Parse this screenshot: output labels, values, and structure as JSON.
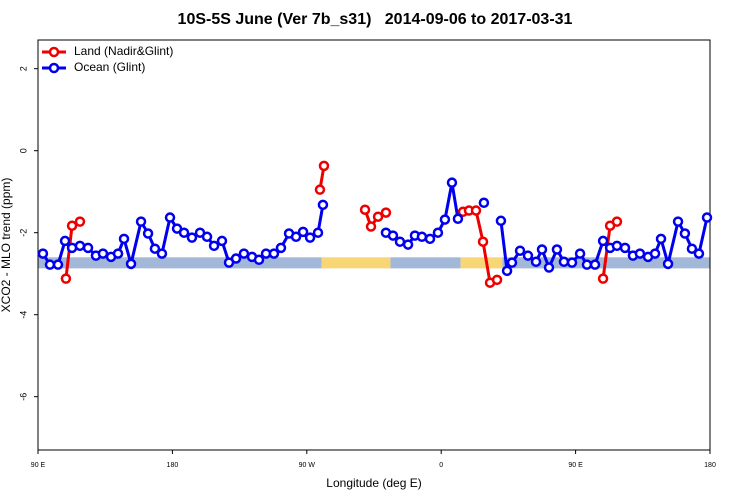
{
  "chart_data": {
    "type": "line",
    "title": "10S-5S June (Ver 7b_s31)   2014-09-06 to 2017-03-31",
    "x_label": "Longitude (deg E)",
    "y_label": "XCO2 - MLO trend (ppm)",
    "xlim": [
      90,
      540
    ],
    "ylim": [
      -7.3,
      2.7
    ],
    "xticks": [
      {
        "value": 90,
        "label": "90 E"
      },
      180,
      {
        "value": 270,
        "label": "90 W"
      },
      {
        "value": 360,
        "label": "0"
      },
      {
        "value": 450,
        "label": "90 E"
      },
      {
        "value": 540,
        "label": "180"
      }
    ],
    "yticks": [
      2,
      0,
      -2,
      -4,
      -6
    ],
    "legend": "top-left",
    "surface_band": {
      "ylim": [
        -2.6,
        -2.87
      ],
      "segments": [
        {
          "from": 90,
          "to": 280,
          "color": "#a3b8d8"
        },
        {
          "from": 280,
          "to": 326,
          "color": "#f8d676"
        },
        {
          "from": 326,
          "to": 373,
          "color": "#a3b8d8"
        },
        {
          "from": 373,
          "to": 401,
          "color": "#f8d676"
        },
        {
          "from": 401,
          "to": 540,
          "color": "#a3b8d8"
        }
      ]
    },
    "series": [
      {
        "name": "Land (Nadir&Glint)",
        "color": "#ee0000",
        "x": [
          108.7,
          112.8,
          118.1,
          200,
          278.8,
          281.5,
          300,
          309.0,
          313.0,
          317.7,
          323.0,
          340,
          374.6,
          378.6,
          383.3,
          388.0,
          392.7,
          397.4,
          430,
          468.4,
          473.1,
          477.7
        ],
        "values": [
          -3.12,
          -1.83,
          -1.73,
          null,
          -0.95,
          -0.37,
          null,
          -1.44,
          -1.85,
          -1.61,
          -1.51,
          null,
          -1.49,
          -1.46,
          -1.46,
          -2.22,
          -3.22,
          -3.15,
          null,
          -3.12,
          -1.83,
          -1.73
        ]
      },
      {
        "name": "Ocean (Glint)",
        "color": "#0000ee",
        "x": [
          93.3,
          98.0,
          103.4,
          108.1,
          112.8,
          118.1,
          123.5,
          128.8,
          133.5,
          138.9,
          143.6,
          147.6,
          152.3,
          159.0,
          163.7,
          168.3,
          173.0,
          178.4,
          183.1,
          187.8,
          193.1,
          198.5,
          203.2,
          207.9,
          213.2,
          217.9,
          222.6,
          227.9,
          233.3,
          238.0,
          242.7,
          248.0,
          252.7,
          258.1,
          262.8,
          267.5,
          272.2,
          277.5,
          280.8,
          300,
          323.0,
          327.7,
          332.4,
          337.8,
          342.4,
          347.1,
          352.5,
          357.8,
          362.5,
          367.2,
          371.2,
          380,
          388.6,
          395,
          400.0,
          404.1,
          407.4,
          412.8,
          418.1,
          423.5,
          427.5,
          432.2,
          437.5,
          442.2,
          447.6,
          453.0,
          457.6,
          463.0,
          468.4,
          473.1,
          477.7,
          483.1,
          488.4,
          493.1,
          498.5,
          503.2,
          507.2,
          511.9,
          518.6,
          523.2,
          527.9,
          532.6,
          538.0
        ],
        "values": [
          -2.51,
          -2.78,
          -2.78,
          -2.2,
          -2.37,
          -2.32,
          -2.37,
          -2.56,
          -2.51,
          -2.59,
          -2.51,
          -2.15,
          -2.76,
          -1.73,
          -2.02,
          -2.39,
          -2.51,
          -1.63,
          -1.9,
          -2.0,
          -2.12,
          -2.0,
          -2.1,
          -2.32,
          -2.2,
          -2.73,
          -2.63,
          -2.51,
          -2.59,
          -2.66,
          -2.51,
          -2.51,
          -2.37,
          -2.02,
          -2.1,
          -1.98,
          -2.12,
          -2.0,
          -1.32,
          null,
          -2.0,
          -2.07,
          -2.22,
          -2.29,
          -2.07,
          -2.1,
          -2.15,
          -2.0,
          -1.68,
          -0.78,
          -1.66,
          null,
          -1.27,
          null,
          -1.71,
          -2.93,
          -2.73,
          -2.44,
          -2.56,
          -2.71,
          -2.41,
          -2.85,
          -2.41,
          -2.71,
          -2.73,
          -2.51,
          -2.78,
          -2.78,
          -2.2,
          -2.37,
          -2.32,
          -2.37,
          -2.56,
          -2.51,
          -2.59,
          -2.51,
          -2.15,
          -2.76,
          -1.73,
          -2.02,
          -2.39,
          -2.51,
          -1.63
        ]
      }
    ]
  }
}
